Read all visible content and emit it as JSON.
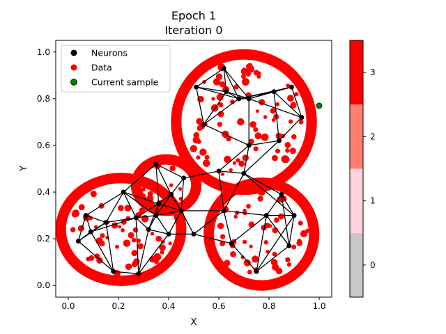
{
  "chart_data": {
    "type": "scatter",
    "title": "Epoch 1",
    "subtitle": "Iteration 0",
    "xlabel": "X",
    "ylabel": "Y",
    "xlim": [
      -0.05,
      1.05
    ],
    "ylim": [
      -0.05,
      1.05
    ],
    "xticks": [
      "0.0",
      "0.2",
      "0.4",
      "0.6",
      "0.8",
      "1.0"
    ],
    "yticks": [
      "0.0",
      "0.2",
      "0.4",
      "0.6",
      "0.8",
      "1.0"
    ],
    "grid": false,
    "legend_position": "top-left",
    "legend": [
      {
        "label": "Neurons",
        "color": "#000000"
      },
      {
        "label": "Data",
        "color": "#ff0000"
      },
      {
        "label": "Current sample",
        "color": "#008000"
      }
    ],
    "colorbar": {
      "ticks": [
        "0",
        "1",
        "2",
        "3"
      ],
      "range": [
        -0.5,
        3.5
      ],
      "colors": [
        "#c8c8c8",
        "#ffd2dc",
        "#ff8070",
        "#ff0000"
      ]
    },
    "blobs": [
      {
        "name": "top-right",
        "cx": 0.7,
        "cy": 0.7,
        "rx": 0.27,
        "ry": 0.29
      },
      {
        "name": "bottom-left",
        "cx": 0.21,
        "cy": 0.24,
        "rx": 0.24,
        "ry": 0.22
      },
      {
        "name": "bottom-right",
        "cx": 0.77,
        "cy": 0.22,
        "rx": 0.21,
        "ry": 0.22
      },
      {
        "name": "middle",
        "cx": 0.39,
        "cy": 0.43,
        "rx": 0.12,
        "ry": 0.11
      }
    ],
    "neurons": [
      [
        0.07,
        0.3
      ],
      [
        0.09,
        0.23
      ],
      [
        0.15,
        0.27
      ],
      [
        0.04,
        0.19
      ],
      [
        0.22,
        0.4
      ],
      [
        0.32,
        0.24
      ],
      [
        0.28,
        0.05
      ],
      [
        0.35,
        0.3
      ],
      [
        0.18,
        0.06
      ],
      [
        0.36,
        0.35
      ],
      [
        0.41,
        0.39
      ],
      [
        0.46,
        0.46
      ],
      [
        0.54,
        0.69
      ],
      [
        0.68,
        0.8
      ],
      [
        0.72,
        0.8
      ],
      [
        0.63,
        0.83
      ],
      [
        0.82,
        0.83
      ],
      [
        0.89,
        0.85
      ],
      [
        0.62,
        0.93
      ],
      [
        0.72,
        0.6
      ],
      [
        0.6,
        0.49
      ],
      [
        0.79,
        0.3
      ],
      [
        0.7,
        0.48
      ],
      [
        0.62,
        0.32
      ],
      [
        0.85,
        0.39
      ],
      [
        0.9,
        0.3
      ],
      [
        0.88,
        0.17
      ],
      [
        0.75,
        0.06
      ],
      [
        0.45,
        0.32
      ],
      [
        0.35,
        0.52
      ],
      [
        0.27,
        0.29
      ],
      [
        0.5,
        0.22
      ],
      [
        0.84,
        0.62
      ],
      [
        0.93,
        0.72
      ],
      [
        0.51,
        0.85
      ],
      [
        0.4,
        0.22
      ],
      [
        0.65,
        0.18
      ]
    ],
    "current_sample": [
      1.0,
      0.77
    ]
  }
}
